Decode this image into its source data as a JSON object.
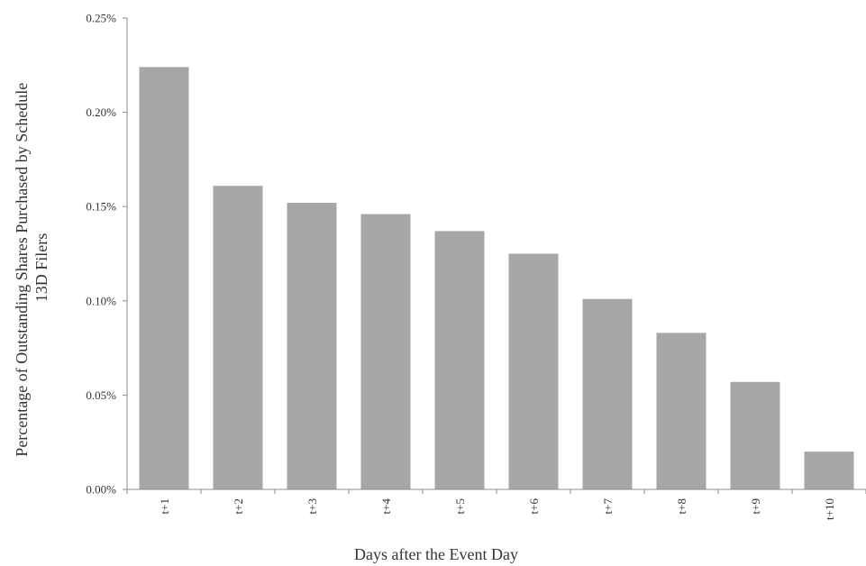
{
  "chart_data": {
    "type": "bar",
    "categories": [
      "t+1",
      "t+2",
      "t+3",
      "t+4",
      "t+5",
      "t+6",
      "t+7",
      "t+8",
      "t+9",
      "t+10"
    ],
    "values": [
      0.224,
      0.161,
      0.152,
      0.146,
      0.137,
      0.125,
      0.101,
      0.083,
      0.057,
      0.02
    ],
    "value_unit": "percent",
    "title": "",
    "xlabel": "Days after the Event Day",
    "ylabel_lines": [
      "Percentage of Outstanding Shares Purchased by Schedule",
      "13D Filers"
    ],
    "ylim": [
      0,
      0.25
    ],
    "yticks": [
      0,
      0.05,
      0.1,
      0.15,
      0.2,
      0.25
    ],
    "ytick_labels": [
      "0.00%",
      "0.05%",
      "0.10%",
      "0.15%",
      "0.20%",
      "0.25%"
    ],
    "grid": false,
    "legend": "none",
    "bar_color": "#a6a6a6",
    "axis_color": "#8c8c8c"
  }
}
